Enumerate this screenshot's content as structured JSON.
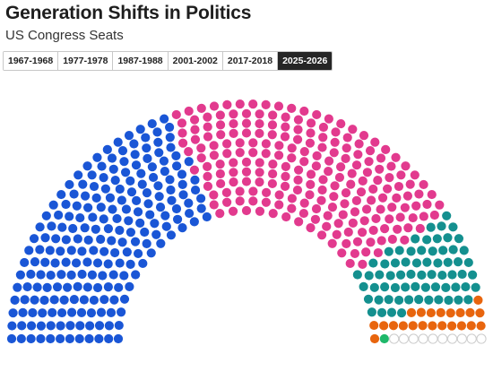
{
  "header": {
    "title": "Generation Shifts in Politics",
    "subtitle": "US Congress Seats"
  },
  "tabs": [
    {
      "label": "1967-1968",
      "active": false
    },
    {
      "label": "1977-1978",
      "active": false
    },
    {
      "label": "1987-1988",
      "active": false
    },
    {
      "label": "2001-2002",
      "active": false
    },
    {
      "label": "2017-2018",
      "active": false
    },
    {
      "label": "2025-2026",
      "active": true
    }
  ],
  "chart_data": {
    "type": "parliament",
    "title": "Generation Shifts in Politics",
    "subtitle": "US Congress Seats",
    "period": "2025-2026",
    "segments": [
      {
        "color": "#1a56d6",
        "seats": 216
      },
      {
        "color": "#e23a8e",
        "seats": 220
      },
      {
        "color": "#14908f",
        "seats": 66
      },
      {
        "color": "#e8650e",
        "seats": 22
      },
      {
        "color": "#1fb86a",
        "seats": 1
      },
      {
        "color": "#ffffff",
        "stroke": "#cccccc",
        "seats": 10
      }
    ]
  }
}
